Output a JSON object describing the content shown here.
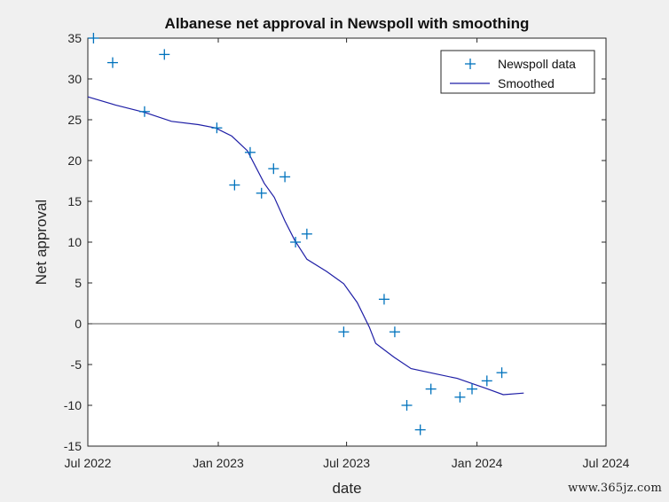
{
  "watermark": "www.365jz.com",
  "chart_data": {
    "type": "scatter",
    "title": "Albanese net approval in Newspoll with smoothing",
    "xlabel": "date",
    "ylabel": "Net approval",
    "xlim": [
      "2022-07-01",
      "2024-07-01"
    ],
    "ylim": [
      -15,
      35
    ],
    "x_ticks": [
      {
        "date": "2022-07-01",
        "label": "Jul 2022"
      },
      {
        "date": "2023-01-01",
        "label": "Jan 2023"
      },
      {
        "date": "2023-07-01",
        "label": "Jul 2023"
      },
      {
        "date": "2024-01-01",
        "label": "Jan 2024"
      },
      {
        "date": "2024-07-01",
        "label": "Jul 2024"
      }
    ],
    "y_ticks": [
      35,
      30,
      25,
      20,
      15,
      10,
      5,
      0,
      -5,
      -10,
      -15
    ],
    "grid": false,
    "zero_line": true,
    "legend_position": "top-right",
    "colors": {
      "data": "#0072bd",
      "smoothed": "#1f1fa6",
      "axis": "#262626",
      "zero_line": "#555555"
    },
    "series": [
      {
        "name": "Newspoll data",
        "marker": "+",
        "points": [
          {
            "x": "2022-07-09",
            "y": 35
          },
          {
            "x": "2022-08-05",
            "y": 32
          },
          {
            "x": "2022-09-19",
            "y": 26
          },
          {
            "x": "2022-10-17",
            "y": 33
          },
          {
            "x": "2022-12-30",
            "y": 24
          },
          {
            "x": "2023-01-24",
            "y": 17
          },
          {
            "x": "2023-02-15",
            "y": 21
          },
          {
            "x": "2023-03-03",
            "y": 16
          },
          {
            "x": "2023-03-20",
            "y": 19
          },
          {
            "x": "2023-04-05",
            "y": 18
          },
          {
            "x": "2023-04-20",
            "y": 10
          },
          {
            "x": "2023-05-06",
            "y": 11
          },
          {
            "x": "2023-06-27",
            "y": -1
          },
          {
            "x": "2023-08-23",
            "y": 3
          },
          {
            "x": "2023-09-07",
            "y": -1
          },
          {
            "x": "2023-09-24",
            "y": -10
          },
          {
            "x": "2023-10-13",
            "y": -13
          },
          {
            "x": "2023-10-28",
            "y": -8
          },
          {
            "x": "2023-12-08",
            "y": -9
          },
          {
            "x": "2023-12-25",
            "y": -8
          },
          {
            "x": "2024-01-15",
            "y": -7
          },
          {
            "x": "2024-02-05",
            "y": -6
          }
        ]
      },
      {
        "name": "Smoothed",
        "line": true,
        "points": [
          {
            "x": "2022-07-01",
            "y": 27.8
          },
          {
            "x": "2022-08-09",
            "y": 26.8
          },
          {
            "x": "2022-09-19",
            "y": 25.9
          },
          {
            "x": "2022-10-27",
            "y": 24.8
          },
          {
            "x": "2022-12-04",
            "y": 24.4
          },
          {
            "x": "2022-12-28",
            "y": 24.0
          },
          {
            "x": "2023-01-20",
            "y": 23.0
          },
          {
            "x": "2023-02-11",
            "y": 21.2
          },
          {
            "x": "2023-03-07",
            "y": 17.2
          },
          {
            "x": "2023-03-21",
            "y": 15.5
          },
          {
            "x": "2023-04-05",
            "y": 12.6
          },
          {
            "x": "2023-04-19",
            "y": 10.2
          },
          {
            "x": "2023-05-06",
            "y": 7.9
          },
          {
            "x": "2023-06-03",
            "y": 6.4
          },
          {
            "x": "2023-06-27",
            "y": 4.9
          },
          {
            "x": "2023-07-16",
            "y": 2.6
          },
          {
            "x": "2023-08-02",
            "y": -0.4
          },
          {
            "x": "2023-08-11",
            "y": -2.4
          },
          {
            "x": "2023-09-06",
            "y": -4.1
          },
          {
            "x": "2023-09-30",
            "y": -5.5
          },
          {
            "x": "2023-11-01",
            "y": -6.1
          },
          {
            "x": "2023-12-04",
            "y": -6.7
          },
          {
            "x": "2024-01-13",
            "y": -7.9
          },
          {
            "x": "2024-02-07",
            "y": -8.7
          },
          {
            "x": "2024-03-07",
            "y": -8.5
          }
        ]
      }
    ]
  }
}
